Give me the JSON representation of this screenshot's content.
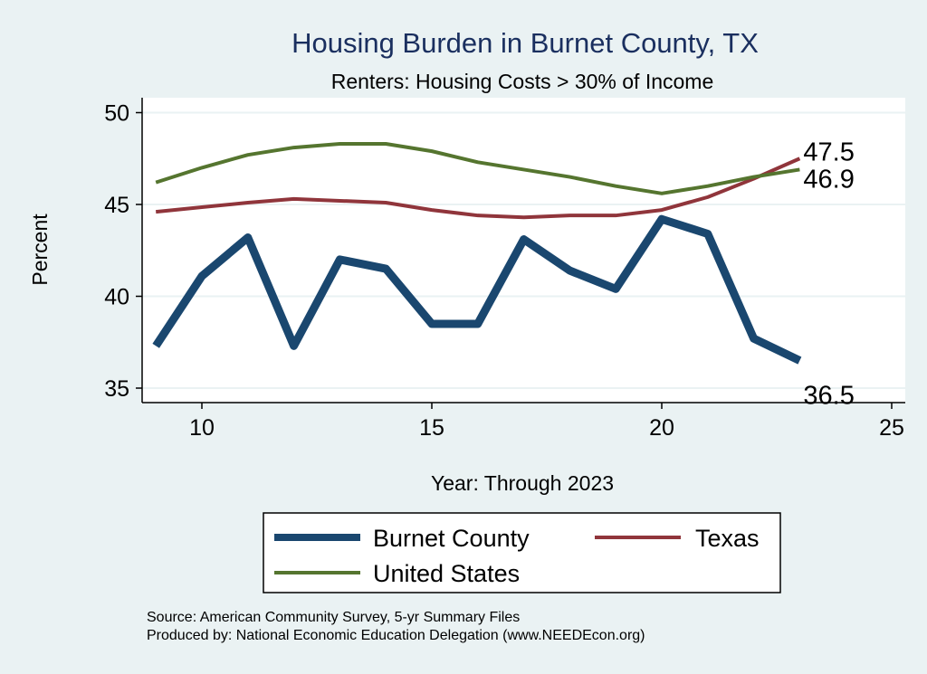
{
  "chart_data": {
    "type": "line",
    "title": "Housing Burden in Burnet County, TX",
    "subtitle": "Renters: Housing Costs > 30% of Income",
    "xlabel": "Year: Through 2023",
    "ylabel": "Percent",
    "xlim": [
      8.8,
      25.2
    ],
    "ylim": [
      34.3,
      50.6
    ],
    "xticks": [
      10,
      15,
      20,
      25
    ],
    "yticks": [
      35,
      40,
      45,
      50
    ],
    "grid": true,
    "legend_position": "bottom",
    "x": [
      9,
      10,
      11,
      12,
      13,
      14,
      15,
      16,
      17,
      18,
      19,
      20,
      21,
      22,
      23
    ],
    "series": [
      {
        "name": "Burnet County",
        "color": "#1a476f",
        "values": [
          37.3,
          41.1,
          43.2,
          37.3,
          42.0,
          41.5,
          38.5,
          38.5,
          43.1,
          41.4,
          40.4,
          44.2,
          43.4,
          37.7,
          36.5
        ],
        "end_label": "36.5"
      },
      {
        "name": "Texas",
        "color": "#90353b",
        "values": [
          44.6,
          44.85,
          45.1,
          45.3,
          45.2,
          45.1,
          44.7,
          44.4,
          44.3,
          44.4,
          44.4,
          44.7,
          45.4,
          46.4,
          47.5
        ],
        "end_label": "47.5"
      },
      {
        "name": "United States",
        "color": "#55752f",
        "values": [
          46.2,
          47.0,
          47.7,
          48.1,
          48.3,
          48.3,
          47.9,
          47.3,
          46.9,
          46.5,
          46.0,
          45.6,
          46.0,
          46.5,
          46.9
        ],
        "end_label": "46.9"
      }
    ],
    "notes": [
      "Source: American Community Survey, 5-yr Summary Files",
      "Produced by: National Economic Education Delegation (www.NEEDEcon.org)"
    ]
  }
}
